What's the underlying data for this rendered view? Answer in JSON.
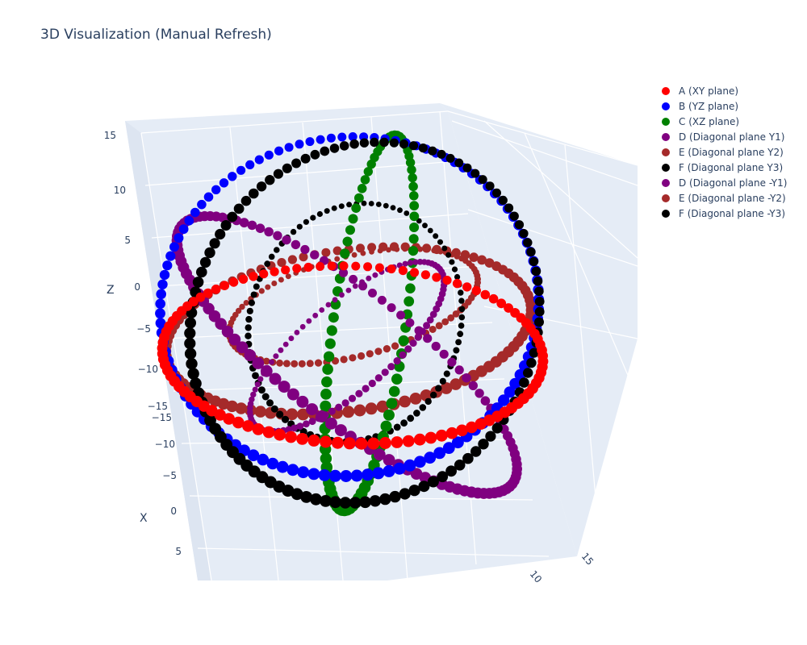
{
  "chart_data": {
    "type": "scatter3d",
    "title": "3D Visualization (Manual Refresh)",
    "axes": {
      "x": {
        "title": "X",
        "ticks": [
          "−15",
          "−10",
          "−5",
          "0",
          "5"
        ]
      },
      "y": {
        "title": "",
        "ticks": [
          "10",
          "15"
        ]
      },
      "z": {
        "title": "Z",
        "ticks": [
          "15",
          "10",
          "5",
          "0",
          "−5",
          "−10",
          "−15"
        ]
      }
    },
    "legend_position": "top-right",
    "series": [
      {
        "name": "A (XY plane)",
        "color": "#ff0000",
        "shape": "circle",
        "radius": 13
      },
      {
        "name": "B (YZ plane)",
        "color": "#0000ff",
        "shape": "circle",
        "radius": 13
      },
      {
        "name": "C (XZ plane)",
        "color": "#008000",
        "shape": "circle",
        "radius": 13
      },
      {
        "name": "D (Diagonal plane Y1)",
        "color": "#800080",
        "shape": "circle",
        "radius": 13
      },
      {
        "name": "E (Diagonal plane Y2)",
        "color": "#a52a2a",
        "shape": "circle",
        "radius": 13
      },
      {
        "name": "F (Diagonal plane Y3)",
        "color": "#000000",
        "shape": "circle",
        "radius": 13
      },
      {
        "name": "D (Diagonal plane -Y1)",
        "color": "#800080",
        "shape": "circle",
        "radius": 8
      },
      {
        "name": "E (Diagonal plane -Y2)",
        "color": "#a52a2a",
        "shape": "circle",
        "radius": 8
      },
      {
        "name": "F (Diagonal plane -Y3)",
        "color": "#000000",
        "shape": "circle",
        "radius": 8
      }
    ]
  }
}
